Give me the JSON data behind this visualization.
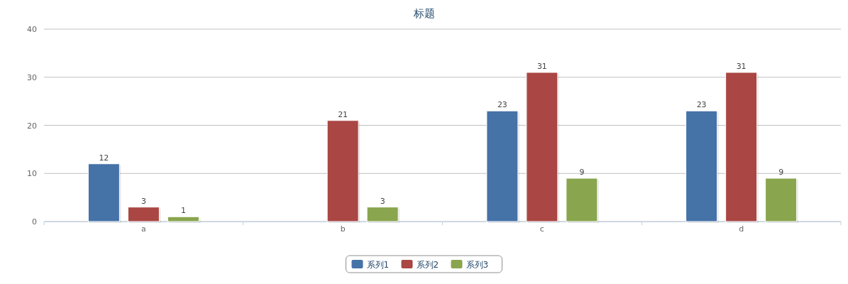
{
  "chart_data": {
    "type": "bar",
    "title": "标题",
    "categories": [
      "a",
      "b",
      "c",
      "d"
    ],
    "series": [
      {
        "name": "系列1",
        "color": "#4572a7",
        "values": [
          12,
          null,
          23,
          23
        ]
      },
      {
        "name": "系列2",
        "color": "#aa4643",
        "values": [
          3,
          21,
          31,
          31
        ]
      },
      {
        "name": "系列3",
        "color": "#89a54e",
        "values": [
          1,
          3,
          9,
          9
        ]
      }
    ],
    "ylim": [
      0,
      40
    ],
    "yticks": [
      0,
      10,
      20,
      30,
      40
    ],
    "grid": "y",
    "legend": "bottom",
    "data_labels": true
  }
}
